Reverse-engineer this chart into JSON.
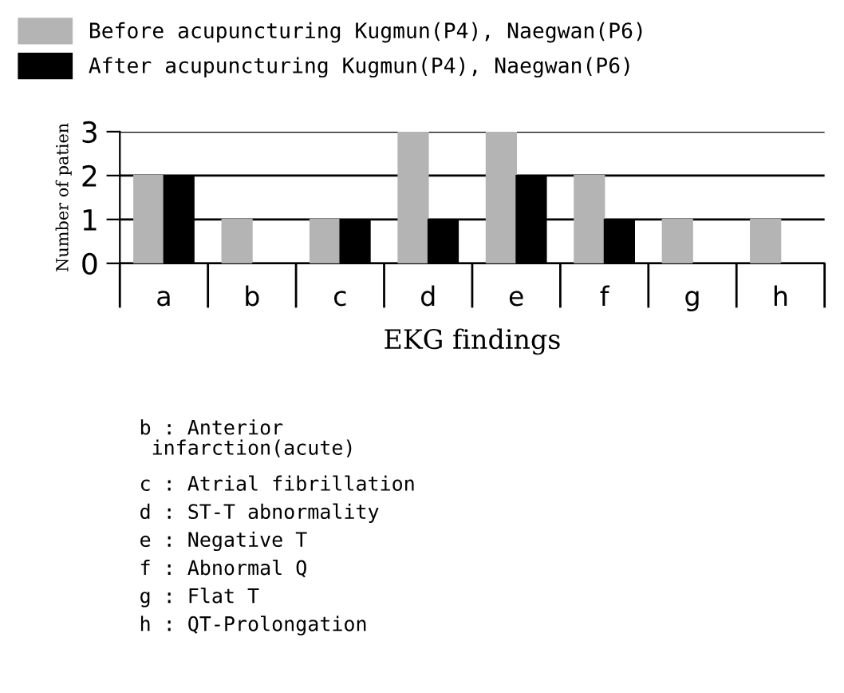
{
  "chart_data": {
    "type": "bar",
    "xlabel": "EKG findings",
    "ylabel": "Number of patien",
    "categories": [
      "a",
      "b",
      "c",
      "d",
      "e",
      "f",
      "g",
      "h"
    ],
    "series": [
      {
        "name": "Before acupuncturing Kugmun(P4), Naegwan(P6)",
        "color": "#b4b4b4",
        "values": [
          2,
          1,
          1,
          3,
          3,
          2,
          1,
          1
        ]
      },
      {
        "name": "After acupuncturing Kugmun(P4), Naegwan(P6)",
        "color": "#000000",
        "values": [
          2,
          0,
          1,
          1,
          2,
          1,
          0,
          0
        ]
      }
    ],
    "ylim": [
      0,
      3
    ],
    "yticks": [
      0,
      1,
      2,
      3
    ],
    "grid": "y",
    "legend": "top",
    "annotations": [
      "b : Anterior\n infarction(acute)",
      "c : Atrial fibrillation",
      "d : ST-T abnormality",
      "e : Negative T",
      "f : Abnormal Q",
      "g : Flat T",
      "h : QT-Prolongation"
    ]
  }
}
